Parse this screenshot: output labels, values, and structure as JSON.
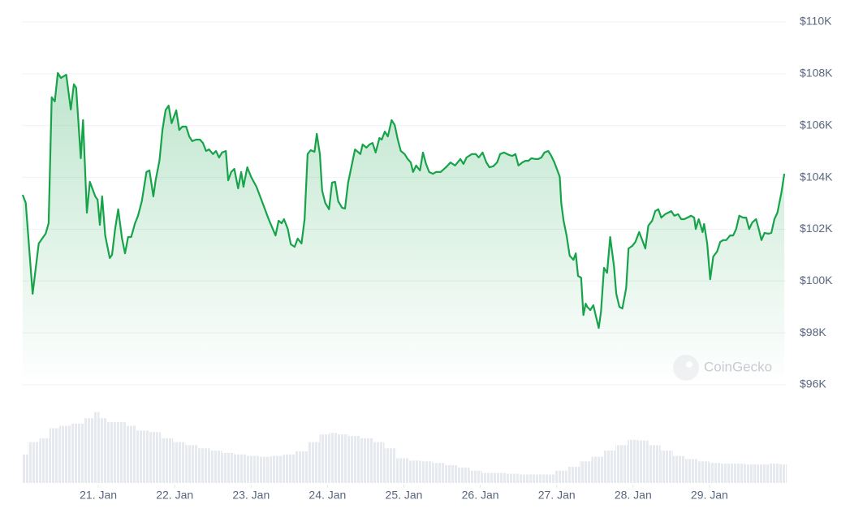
{
  "chart_data": [
    {
      "type": "line",
      "watermark": "CoinGecko",
      "xlim": [
        20,
        30
      ],
      "xticks": [
        {
          "value": 21,
          "label": "21. Jan"
        },
        {
          "value": 22,
          "label": "22. Jan"
        },
        {
          "value": 23,
          "label": "23. Jan"
        },
        {
          "value": 24,
          "label": "24. Jan"
        },
        {
          "value": 25,
          "label": "25. Jan"
        },
        {
          "value": 26,
          "label": "26. Jan"
        },
        {
          "value": 27,
          "label": "27. Jan"
        },
        {
          "value": 28,
          "label": "28. Jan"
        },
        {
          "value": 29,
          "label": "29. Jan"
        }
      ],
      "ylim": [
        96000,
        110000
      ],
      "yticks": [
        {
          "value": 96000,
          "label": "$96K"
        },
        {
          "value": 98000,
          "label": "$98K"
        },
        {
          "value": 100000,
          "label": "$100K"
        },
        {
          "value": 102000,
          "label": "$102K"
        },
        {
          "value": 104000,
          "label": "$104K"
        },
        {
          "value": 106000,
          "label": "$106K"
        },
        {
          "value": 108000,
          "label": "$108K"
        },
        {
          "value": 110000,
          "label": "$110K"
        }
      ],
      "grid": true,
      "series": [
        {
          "color": "#16a34a",
          "area": true,
          "x": [
            20.01,
            20.05,
            20.14,
            20.22,
            20.31,
            20.35,
            20.39,
            20.43,
            20.47,
            20.51,
            20.58,
            20.64,
            20.68,
            20.71,
            20.77,
            20.8,
            20.85,
            20.89,
            20.96,
            20.99,
            21.02,
            21.05,
            21.09,
            21.15,
            21.18,
            21.22,
            21.26,
            21.31,
            21.35,
            21.39,
            21.43,
            21.48,
            21.52,
            21.57,
            21.63,
            21.67,
            21.72,
            21.75,
            21.8,
            21.84,
            21.88,
            21.92,
            21.96,
            22.02,
            22.06,
            22.1,
            22.15,
            22.19,
            22.23,
            22.28,
            22.33,
            22.37,
            22.41,
            22.45,
            22.5,
            22.54,
            22.58,
            22.62,
            22.67,
            22.7,
            22.74,
            22.78,
            22.83,
            22.87,
            22.9,
            22.95,
            23.0,
            23.07,
            23.15,
            23.23,
            23.32,
            23.36,
            23.4,
            23.43,
            23.48,
            23.52,
            23.57,
            23.61,
            23.66,
            23.7,
            23.74,
            23.78,
            23.83,
            23.86,
            23.9,
            23.93,
            23.97,
            24.02,
            24.06,
            24.1,
            24.14,
            24.19,
            24.23,
            24.27,
            24.36,
            24.43,
            24.46,
            24.51,
            24.55,
            24.59,
            24.63,
            24.68,
            24.71,
            24.75,
            24.79,
            24.84,
            24.88,
            24.92,
            24.96,
            25.01,
            25.05,
            25.09,
            25.12,
            25.16,
            25.21,
            25.25,
            25.29,
            25.33,
            25.38,
            25.42,
            25.48,
            25.55,
            25.61,
            25.67,
            25.74,
            25.78,
            25.82,
            25.89,
            25.94,
            25.98,
            26.03,
            26.08,
            26.12,
            26.17,
            26.22,
            26.26,
            26.31,
            26.38,
            26.42,
            26.46,
            26.5,
            26.55,
            26.59,
            26.63,
            26.67,
            26.72,
            26.76,
            26.8,
            26.84,
            26.89,
            26.93,
            26.97,
            27.01,
            27.04,
            27.06,
            27.09,
            27.13,
            27.17,
            27.22,
            27.25,
            27.28,
            27.32,
            27.35,
            27.38,
            27.4,
            27.44,
            27.48,
            27.51,
            27.55,
            27.58,
            27.62,
            27.66,
            27.7,
            27.75,
            27.78,
            27.82,
            27.86,
            27.91,
            27.94,
            27.99,
            28.03,
            28.08,
            28.12,
            28.16,
            28.2,
            28.25,
            28.29,
            28.33,
            28.37,
            28.42,
            28.46,
            28.5,
            28.54,
            28.59,
            28.63,
            28.67,
            28.71,
            28.76,
            28.8,
            28.82,
            28.86,
            28.91,
            28.93,
            28.97,
            29.01,
            29.05,
            29.1,
            29.14,
            29.18,
            29.22,
            29.27,
            29.31,
            29.35,
            29.39,
            29.44,
            29.48,
            29.52,
            29.56,
            29.61,
            29.65,
            29.68,
            29.72,
            29.77,
            29.81,
            29.85,
            29.89,
            29.94,
            29.98
          ],
          "values": [
            103330,
            103020,
            99510,
            101450,
            101830,
            102230,
            107090,
            106930,
            108030,
            107840,
            107960,
            106620,
            107590,
            107460,
            104740,
            106210,
            102640,
            103830,
            103270,
            103140,
            102170,
            103270,
            101760,
            100890,
            101010,
            102010,
            102770,
            101640,
            101070,
            101700,
            101700,
            102230,
            102520,
            103080,
            104210,
            104270,
            103270,
            103890,
            104640,
            105830,
            106590,
            106770,
            106090,
            106590,
            105830,
            105960,
            105960,
            105580,
            105400,
            105460,
            105460,
            105330,
            105020,
            105080,
            104900,
            105020,
            104770,
            104960,
            105020,
            103890,
            104210,
            104330,
            103580,
            104210,
            103640,
            104390,
            104020,
            103640,
            103020,
            102390,
            101760,
            102330,
            102230,
            102390,
            102010,
            101420,
            101320,
            101640,
            101450,
            102390,
            104900,
            105050,
            104990,
            105680,
            104900,
            103490,
            103020,
            102770,
            103800,
            103830,
            103080,
            102830,
            102800,
            103800,
            105080,
            104900,
            105270,
            105150,
            105270,
            105330,
            104960,
            105520,
            105460,
            105770,
            105580,
            106210,
            106020,
            105460,
            105020,
            104900,
            104710,
            104580,
            104210,
            104460,
            104270,
            104960,
            104520,
            104210,
            104140,
            104210,
            104210,
            104390,
            104580,
            104460,
            104710,
            104520,
            104770,
            104900,
            104900,
            104770,
            104960,
            104580,
            104390,
            104430,
            104580,
            104900,
            104960,
            104860,
            104830,
            104900,
            104460,
            104580,
            104640,
            104640,
            104740,
            104710,
            104710,
            104770,
            104960,
            105020,
            104830,
            104580,
            104270,
            104020,
            103020,
            102330,
            101760,
            100980,
            100820,
            101070,
            100200,
            100130,
            98690,
            99130,
            99010,
            98880,
            99070,
            98690,
            98190,
            98820,
            100510,
            100320,
            101700,
            100570,
            99510,
            99010,
            98940,
            99730,
            101260,
            101360,
            101510,
            101890,
            101580,
            101260,
            102140,
            102330,
            102700,
            102770,
            102450,
            102580,
            102640,
            102700,
            102520,
            102580,
            102390,
            102390,
            102450,
            102520,
            102450,
            102010,
            102390,
            101890,
            102200,
            101450,
            100070,
            100950,
            101140,
            101510,
            101580,
            101580,
            101760,
            101760,
            102010,
            102520,
            102450,
            102450,
            102010,
            102260,
            102390,
            101950,
            101580,
            101860,
            101830,
            101860,
            102390,
            102640,
            103390,
            104140
          ]
        }
      ]
    },
    {
      "type": "bar",
      "color": "#e6e9ee",
      "xlim": [
        20,
        30
      ],
      "ylim": [
        0,
        100
      ],
      "x": [
        20.01,
        20.15,
        20.31,
        20.41,
        20.57,
        20.73,
        20.89,
        20.98,
        21.05,
        21.16,
        21.32,
        21.42,
        21.58,
        21.74,
        21.9,
        22.06,
        22.22,
        22.38,
        22.54,
        22.7,
        22.86,
        23.02,
        23.18,
        23.34,
        23.5,
        23.66,
        23.82,
        23.97,
        24.08,
        24.19,
        24.35,
        24.51,
        24.67,
        24.82,
        24.98,
        25.14,
        25.3,
        25.46,
        25.62,
        25.78,
        25.94,
        26.1,
        26.26,
        26.42,
        26.58,
        26.74,
        26.9,
        27.06,
        27.22,
        27.38,
        27.53,
        27.69,
        27.85,
        28.01,
        28.12,
        28.28,
        28.44,
        28.6,
        28.76,
        28.92,
        29.08,
        29.23,
        29.39,
        29.55,
        29.71,
        29.87,
        29.98
      ],
      "values": [
        37,
        53,
        58,
        71,
        74,
        77,
        84,
        92,
        84,
        79,
        79,
        74,
        68,
        66,
        58,
        53,
        49,
        45,
        42,
        39,
        37,
        35,
        34,
        35,
        37,
        41,
        53,
        63,
        65,
        63,
        61,
        58,
        53,
        45,
        32,
        29,
        28,
        26,
        23,
        20,
        16,
        13,
        13,
        12,
        11,
        11,
        11,
        16,
        21,
        28,
        34,
        42,
        49,
        56,
        55,
        49,
        42,
        35,
        31,
        28,
        26,
        25,
        25,
        24,
        24,
        25,
        24
      ]
    }
  ]
}
